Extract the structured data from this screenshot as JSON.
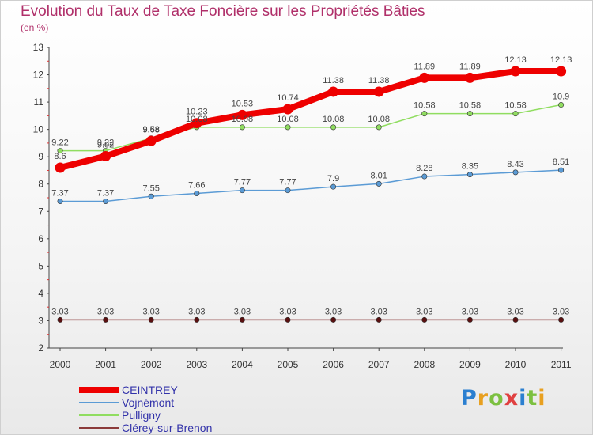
{
  "title": "Evolution du Taux de Taxe Foncière sur les Propriétés Bâties",
  "subtitle": "(en %)",
  "logo": {
    "text": "Proxiti",
    "letter_colors": [
      "#2b7fd0",
      "#e8a020",
      "#7cc040",
      "#e04040",
      "#2b7fd0",
      "#7cc040",
      "#e8a020"
    ]
  },
  "chart_data": {
    "type": "line",
    "title": "Evolution du Taux de Taxe Foncière sur les Propriétés Bâties",
    "ylabel": "(en %)",
    "xlabel": "",
    "x": [
      "2000",
      "2001",
      "2002",
      "2003",
      "2004",
      "2005",
      "2006",
      "2007",
      "2008",
      "2009",
      "2010",
      "2011"
    ],
    "ylim": [
      2,
      13
    ],
    "yticks": [
      2,
      3,
      4,
      5,
      6,
      7,
      8,
      9,
      10,
      11,
      12,
      13
    ],
    "grid": false,
    "legend": "bottom-left",
    "series": [
      {
        "name": "CEINTREY",
        "color": "#ee0000",
        "width": 8,
        "values": [
          8.6,
          9.02,
          9.58,
          10.23,
          10.53,
          10.74,
          11.38,
          11.38,
          11.89,
          11.89,
          12.13,
          12.13
        ],
        "labels": [
          "8.6",
          "9.02",
          "9.58",
          "10.23",
          "10.53",
          "10.74",
          "11.38",
          "11.38",
          "11.89",
          "11.89",
          "12.13",
          "12.13"
        ]
      },
      {
        "name": "Vojnémont",
        "color": "#5b9bd5",
        "width": 1.5,
        "values": [
          7.37,
          7.37,
          7.55,
          7.66,
          7.77,
          7.77,
          7.9,
          8.01,
          8.28,
          8.35,
          8.43,
          8.51
        ],
        "labels": [
          "7.37",
          "7.37",
          "7.55",
          "7.66",
          "7.77",
          "7.77",
          "7.9",
          "8.01",
          "8.28",
          "8.35",
          "8.43",
          "8.51"
        ]
      },
      {
        "name": "Pulligny",
        "color": "#90dd60",
        "width": 1.5,
        "values": [
          9.22,
          9.22,
          9.68,
          10.08,
          10.08,
          10.08,
          10.08,
          10.08,
          10.58,
          10.58,
          10.58,
          10.9
        ],
        "labels": [
          "9.22",
          "9.22",
          "9.68",
          "10.08",
          "10.08",
          "10.08",
          "10.08",
          "10.08",
          "10.58",
          "10.58",
          "10.58",
          "10.9"
        ]
      },
      {
        "name": "Clérey-sur-Brenon",
        "color": "#8b3a3a",
        "width": 1.5,
        "values": [
          3.03,
          3.03,
          3.03,
          3.03,
          3.03,
          3.03,
          3.03,
          3.03,
          3.03,
          3.03,
          3.03,
          3.03
        ],
        "labels": [
          "3.03",
          "3.03",
          "3.03",
          "3.03",
          "3.03",
          "3.03",
          "3.03",
          "3.03",
          "3.03",
          "3.03",
          "3.03",
          "3.03"
        ]
      }
    ]
  }
}
